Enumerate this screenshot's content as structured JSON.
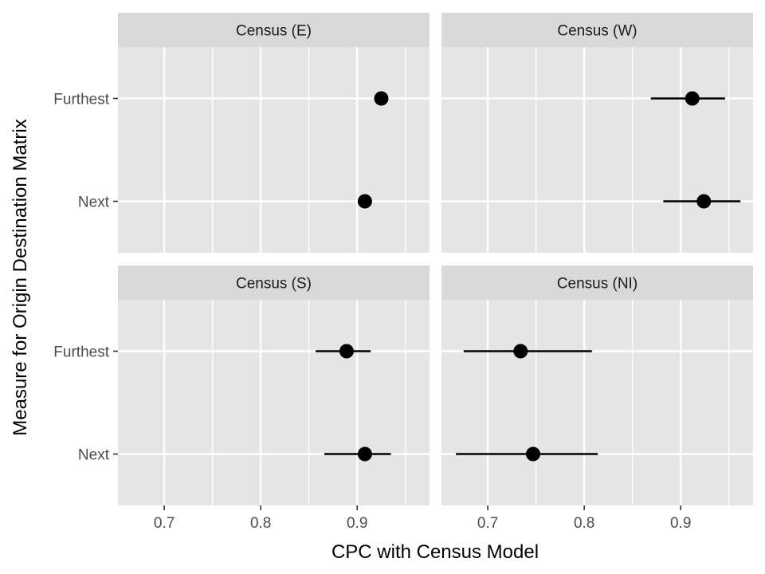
{
  "chart_data": {
    "type": "scatter",
    "subtype": "faceted point estimates with error bars",
    "xlabel": "CPC with Census Model",
    "ylabel": "Measure for Origin Destination Matrix",
    "categories": [
      "Next",
      "Furthest"
    ],
    "xlim": [
      0.652,
      0.975
    ],
    "xticks": [
      0.7,
      0.8,
      0.9
    ],
    "x_tick_labels": [
      "0.7",
      "0.8",
      "0.9"
    ],
    "grid": true,
    "facets": [
      {
        "label": "Census (E)",
        "points": [
          {
            "category": "Furthest",
            "value": 0.925,
            "lower": null,
            "upper": null
          },
          {
            "category": "Next",
            "value": 0.908,
            "lower": null,
            "upper": null
          }
        ]
      },
      {
        "label": "Census (W)",
        "points": [
          {
            "category": "Furthest",
            "value": 0.912,
            "lower": 0.869,
            "upper": 0.946
          },
          {
            "category": "Next",
            "value": 0.924,
            "lower": 0.882,
            "upper": 0.962
          }
        ]
      },
      {
        "label": "Census (S)",
        "points": [
          {
            "category": "Furthest",
            "value": 0.889,
            "lower": 0.857,
            "upper": 0.914
          },
          {
            "category": "Next",
            "value": 0.908,
            "lower": 0.866,
            "upper": 0.935
          }
        ]
      },
      {
        "label": "Census (NI)",
        "points": [
          {
            "category": "Furthest",
            "value": 0.734,
            "lower": 0.675,
            "upper": 0.808
          },
          {
            "category": "Next",
            "value": 0.747,
            "lower": 0.667,
            "upper": 0.814
          }
        ]
      }
    ],
    "colors": {
      "panel_background": "#e5e5e5",
      "strip_background": "#d9d9d9",
      "grid": "#ffffff",
      "point": "#000000",
      "tick_text": "#4d4d4d"
    }
  }
}
